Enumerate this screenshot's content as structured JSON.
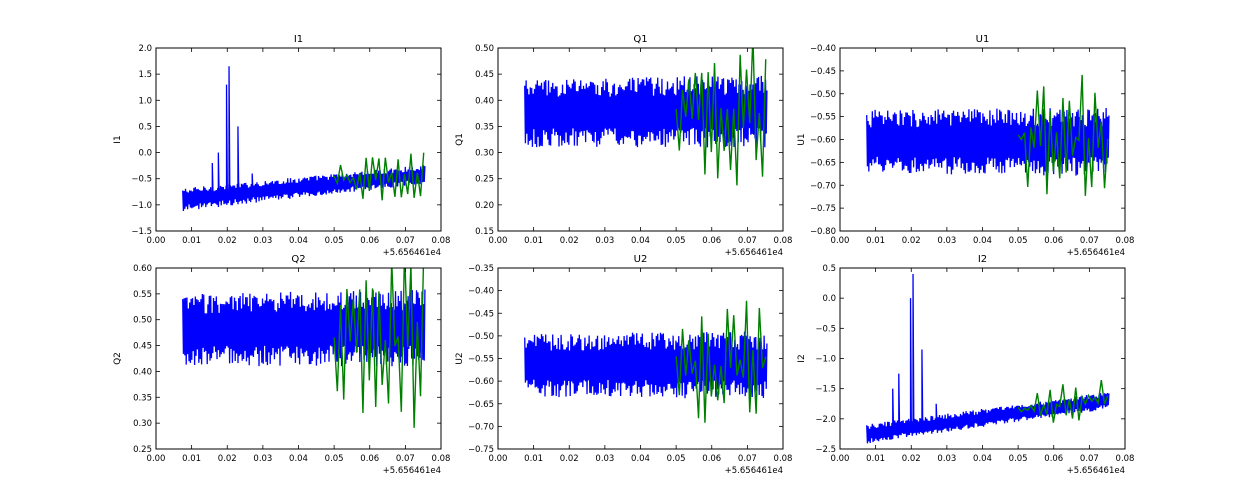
{
  "figure": {
    "background": "#ffffff"
  },
  "colors": {
    "series_1": "#0000ff",
    "series_2": "#008000",
    "axes": "#000000"
  },
  "chart_data": [
    {
      "type": "line",
      "title": "I1",
      "xlabel": "",
      "ylabel": "I1",
      "x_offset_label": "+5.656461e4",
      "xlim": [
        0.0,
        0.08
      ],
      "ylim": [
        -1.5,
        2.0
      ],
      "xticks": [
        "0.00",
        "0.01",
        "0.02",
        "0.03",
        "0.04",
        "0.05",
        "0.06",
        "0.07",
        "0.08"
      ],
      "yticks": [
        "−1.5",
        "−1.0",
        "−0.5",
        "0.0",
        "0.5",
        "1.0",
        "1.5",
        "2.0"
      ],
      "grid": false,
      "series": [
        {
          "color": "#0000ff",
          "x_range": [
            0.0075,
            0.0755
          ],
          "baseline": [
            [
              0.0075,
              -0.9
            ],
            [
              0.075,
              -0.42
            ]
          ],
          "envelope": [
            [
              0.0075,
              0.22
            ],
            [
              0.075,
              0.18
            ]
          ],
          "spikes": [
            [
              0.0158,
              -0.2
            ],
            [
              0.0175,
              0.0
            ],
            [
              0.0198,
              1.3
            ],
            [
              0.0205,
              1.65
            ],
            [
              0.023,
              0.5
            ],
            [
              0.027,
              -0.4
            ]
          ]
        },
        {
          "color": "#008000",
          "x_range": [
            0.05,
            0.0755
          ],
          "baseline": [
            [
              0.05,
              -0.52
            ],
            [
              0.075,
              -0.42
            ]
          ],
          "envelope": [
            [
              0.05,
              0.35
            ],
            [
              0.075,
              0.55
            ]
          ],
          "spikes": []
        }
      ]
    },
    {
      "type": "line",
      "title": "Q1",
      "xlabel": "",
      "ylabel": "Q1",
      "x_offset_label": "+5.656461e4",
      "xlim": [
        0.0,
        0.08
      ],
      "ylim": [
        0.15,
        0.5
      ],
      "xticks": [
        "0.00",
        "0.01",
        "0.02",
        "0.03",
        "0.04",
        "0.05",
        "0.06",
        "0.07",
        "0.08"
      ],
      "yticks": [
        "0.15",
        "0.20",
        "0.25",
        "0.30",
        "0.35",
        "0.40",
        "0.45",
        "0.50"
      ],
      "grid": false,
      "series": [
        {
          "color": "#0000ff",
          "x_range": [
            0.0075,
            0.0755
          ],
          "baseline": [
            [
              0.0075,
              0.375
            ],
            [
              0.075,
              0.38
            ]
          ],
          "envelope": [
            [
              0.0075,
              0.065
            ],
            [
              0.075,
              0.07
            ]
          ],
          "spikes": []
        },
        {
          "color": "#008000",
          "x_range": [
            0.05,
            0.0755
          ],
          "baseline": [
            [
              0.05,
              0.37
            ],
            [
              0.075,
              0.37
            ]
          ],
          "envelope": [
            [
              0.05,
              0.09
            ],
            [
              0.075,
              0.17
            ]
          ],
          "spikes": []
        }
      ]
    },
    {
      "type": "line",
      "title": "U1",
      "xlabel": "",
      "ylabel": "U1",
      "x_offset_label": "+5.656461e4",
      "xlim": [
        0.0,
        0.08
      ],
      "ylim": [
        -0.8,
        -0.4
      ],
      "xticks": [
        "0.00",
        "0.01",
        "0.02",
        "0.03",
        "0.04",
        "0.05",
        "0.06",
        "0.07",
        "0.08"
      ],
      "yticks": [
        "−0.80",
        "−0.75",
        "−0.70",
        "−0.65",
        "−0.60",
        "−0.55",
        "−0.50",
        "−0.45",
        "−0.40"
      ],
      "grid": false,
      "series": [
        {
          "color": "#0000ff",
          "x_range": [
            0.0075,
            0.0755
          ],
          "baseline": [
            [
              0.0075,
              -0.605
            ],
            [
              0.075,
              -0.605
            ]
          ],
          "envelope": [
            [
              0.0075,
              0.07
            ],
            [
              0.075,
              0.075
            ]
          ],
          "spikes": []
        },
        {
          "color": "#008000",
          "x_range": [
            0.05,
            0.0755
          ],
          "baseline": [
            [
              0.05,
              -0.6
            ],
            [
              0.075,
              -0.6
            ]
          ],
          "envelope": [
            [
              0.05,
              0.1
            ],
            [
              0.075,
              0.17
            ]
          ],
          "spikes": []
        }
      ]
    },
    {
      "type": "line",
      "title": "Q2",
      "xlabel": "",
      "ylabel": "Q2",
      "x_offset_label": "+5.656461e4",
      "xlim": [
        0.0,
        0.08
      ],
      "ylim": [
        0.25,
        0.6
      ],
      "xticks": [
        "0.00",
        "0.01",
        "0.02",
        "0.03",
        "0.04",
        "0.05",
        "0.06",
        "0.07",
        "0.08"
      ],
      "yticks": [
        "0.25",
        "0.30",
        "0.35",
        "0.40",
        "0.45",
        "0.50",
        "0.55",
        "0.60"
      ],
      "grid": false,
      "series": [
        {
          "color": "#0000ff",
          "x_range": [
            0.0075,
            0.0755
          ],
          "baseline": [
            [
              0.0075,
              0.48
            ],
            [
              0.075,
              0.485
            ]
          ],
          "envelope": [
            [
              0.0075,
              0.07
            ],
            [
              0.075,
              0.075
            ]
          ],
          "spikes": []
        },
        {
          "color": "#008000",
          "x_range": [
            0.05,
            0.0755
          ],
          "baseline": [
            [
              0.05,
              0.46
            ],
            [
              0.075,
              0.46
            ]
          ],
          "envelope": [
            [
              0.05,
              0.12
            ],
            [
              0.075,
              0.19
            ]
          ],
          "spikes": []
        }
      ]
    },
    {
      "type": "line",
      "title": "U2",
      "xlabel": "",
      "ylabel": "U2",
      "x_offset_label": "+5.656461e4",
      "xlim": [
        0.0,
        0.08
      ],
      "ylim": [
        -0.75,
        -0.35
      ],
      "xticks": [
        "0.00",
        "0.01",
        "0.02",
        "0.03",
        "0.04",
        "0.05",
        "0.06",
        "0.07",
        "0.08"
      ],
      "yticks": [
        "−0.75",
        "−0.70",
        "−0.65",
        "−0.60",
        "−0.55",
        "−0.50",
        "−0.45",
        "−0.40",
        "−0.35"
      ],
      "grid": false,
      "series": [
        {
          "color": "#0000ff",
          "x_range": [
            0.0075,
            0.0755
          ],
          "baseline": [
            [
              0.0075,
              -0.565
            ],
            [
              0.075,
              -0.565
            ]
          ],
          "envelope": [
            [
              0.0075,
              0.07
            ],
            [
              0.075,
              0.075
            ]
          ],
          "spikes": []
        },
        {
          "color": "#008000",
          "x_range": [
            0.05,
            0.0755
          ],
          "baseline": [
            [
              0.05,
              -0.57
            ],
            [
              0.075,
              -0.57
            ]
          ],
          "envelope": [
            [
              0.05,
              0.1
            ],
            [
              0.075,
              0.17
            ]
          ],
          "spikes": []
        }
      ]
    },
    {
      "type": "line",
      "title": "I2",
      "xlabel": "",
      "ylabel": "I2",
      "x_offset_label": "+5.656461e4",
      "xlim": [
        0.0,
        0.08
      ],
      "ylim": [
        -2.5,
        0.5
      ],
      "xticks": [
        "0.00",
        "0.01",
        "0.02",
        "0.03",
        "0.04",
        "0.05",
        "0.06",
        "0.07",
        "0.08"
      ],
      "yticks": [
        "−2.5",
        "−2.0",
        "−1.5",
        "−1.0",
        "−0.5",
        "0.0",
        "0.5"
      ],
      "grid": false,
      "series": [
        {
          "color": "#0000ff",
          "x_range": [
            0.0075,
            0.0755
          ],
          "baseline": [
            [
              0.0075,
              -2.25
            ],
            [
              0.075,
              -1.7
            ]
          ],
          "envelope": [
            [
              0.0075,
              0.16
            ],
            [
              0.075,
              0.14
            ]
          ],
          "spikes": [
            [
              0.0148,
              -1.5
            ],
            [
              0.0165,
              -1.25
            ],
            [
              0.0198,
              0.0
            ],
            [
              0.0205,
              0.4
            ],
            [
              0.023,
              -0.85
            ],
            [
              0.027,
              -1.75
            ]
          ]
        },
        {
          "color": "#008000",
          "x_range": [
            0.05,
            0.0755
          ],
          "baseline": [
            [
              0.05,
              -1.85
            ],
            [
              0.075,
              -1.65
            ]
          ],
          "envelope": [
            [
              0.05,
              0.2
            ],
            [
              0.075,
              0.45
            ]
          ],
          "spikes": []
        }
      ]
    }
  ]
}
